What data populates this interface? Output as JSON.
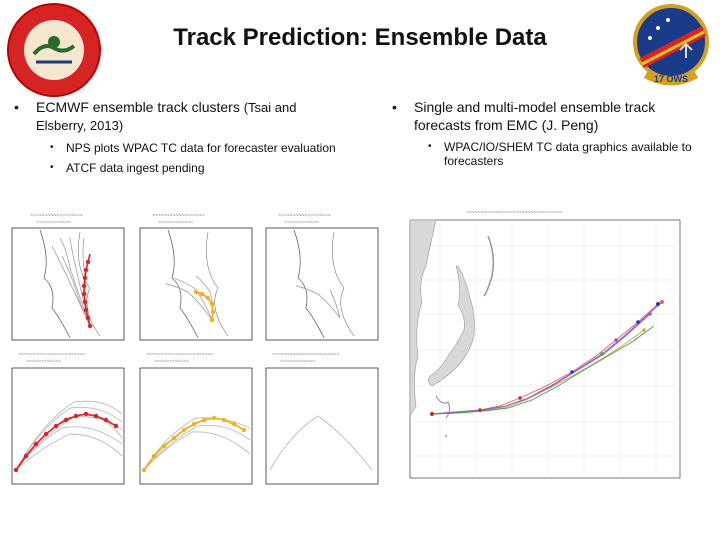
{
  "slide": {
    "title": "Track Prediction: Ensemble Data"
  },
  "left_logo": {
    "text_top": "JOINT TYPHOON WARNING CENTER",
    "text_bottom": "PEARL HARBOR HAWAII"
  },
  "right_logo": {
    "text": "17 OWS"
  },
  "left_column": {
    "bullet": "ECMWF ensemble track clusters",
    "bullet_cite": "(Tsai and",
    "bullet_cite_2": "Elsberry, 2013)",
    "sub1": "NPS plots WPAC TC data for forecaster evaluation",
    "sub2": "ATCF data ingest pending"
  },
  "right_column": {
    "bullet": "Single and multi-model ensemble track forecasts from EMC (J. Peng)",
    "sub1": "WPAC/IO/SHEM TC data graphics available to forecasters"
  },
  "colors": {
    "red": "#e02020",
    "orange": "#f0b020",
    "gray": "#a0a0a0"
  }
}
